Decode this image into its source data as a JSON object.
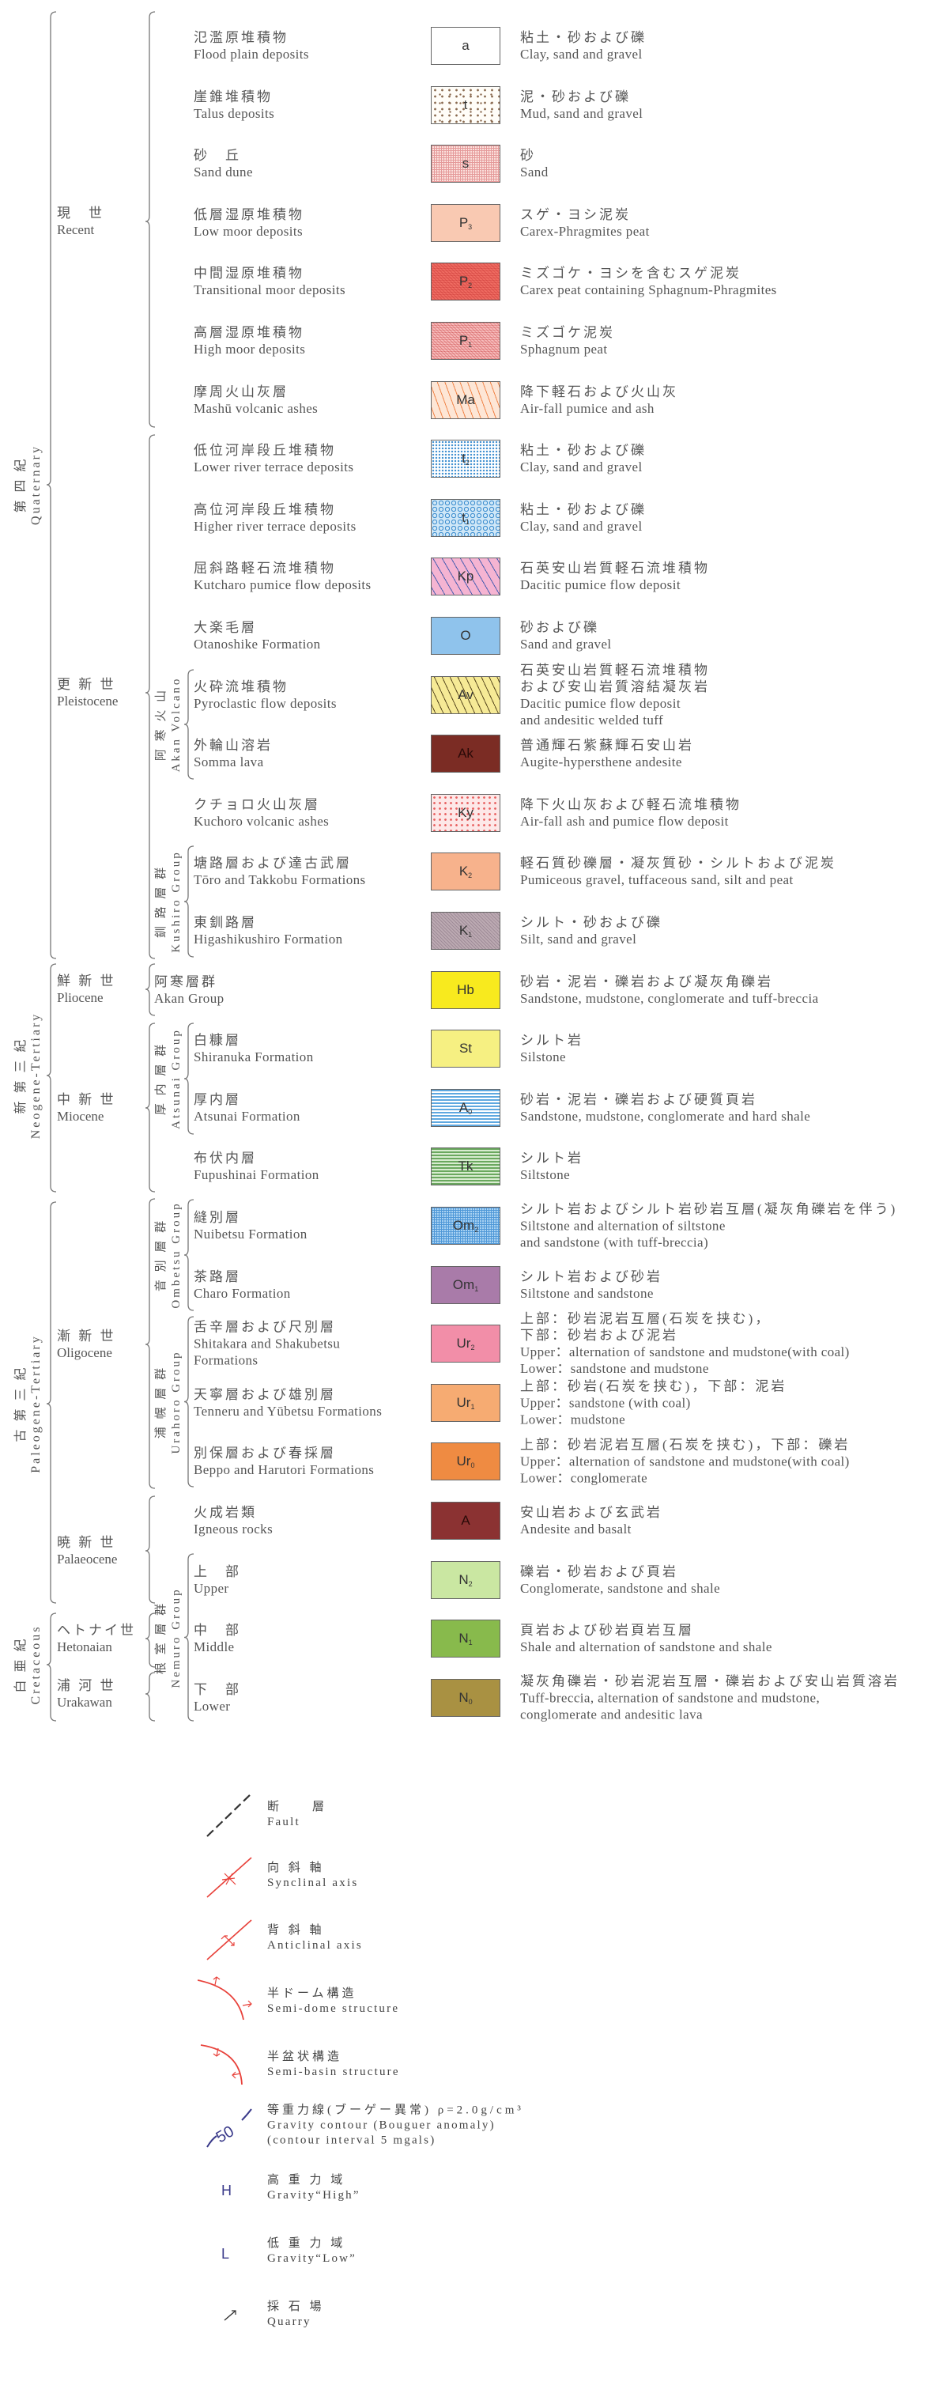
{
  "periods": [
    {
      "key": "quaternary",
      "jp": "第 四 紀",
      "en": "Quaternary"
    },
    {
      "key": "neogene",
      "jp": "新 第 三 紀",
      "en": "Neogene-Tertiary"
    },
    {
      "key": "paleogene",
      "jp": "古 第 三 紀",
      "en": "Paleogene-Tertiary"
    },
    {
      "key": "cretaceous",
      "jp": "白 亜 紀",
      "en": "Cretaceous"
    }
  ],
  "epochs": [
    {
      "key": "recent",
      "jp": "現　世",
      "en": "Recent"
    },
    {
      "key": "pleistocene",
      "jp": "更 新 世",
      "en": "Pleistocene"
    },
    {
      "key": "pliocene",
      "jp": "鮮 新 世",
      "en": "Pliocene"
    },
    {
      "key": "miocene",
      "jp": "中 新 世",
      "en": "Miocene"
    },
    {
      "key": "oligocene",
      "jp": "漸 新 世",
      "en": "Oligocene"
    },
    {
      "key": "palaeocene",
      "jp": "暁 新 世",
      "en": "Palaeocene"
    },
    {
      "key": "hetonaian",
      "jp": "ヘトナイ世",
      "en": "Hetonaian"
    },
    {
      "key": "urakawan",
      "jp": "浦 河 世",
      "en": "Urakawan"
    }
  ],
  "groups": [
    {
      "key": "akan_volcano",
      "jp": "阿 寒 火 山",
      "en": "Akan Volcano"
    },
    {
      "key": "kushiro",
      "jp": "釧 路 層 群",
      "en": "Kushiro Group"
    },
    {
      "key": "atsunai",
      "jp": "厚 内 層 群",
      "en": "Atsunai Group"
    },
    {
      "key": "ombetsu",
      "jp": "音 別 層 群",
      "en": "Ombetsu Group"
    },
    {
      "key": "urahoro",
      "jp": "浦 幌 層 群",
      "en": "Urahoro Group"
    },
    {
      "key": "nemuro",
      "jp": "根 室 層 群",
      "en": "Nemuro Group"
    }
  ],
  "units": [
    {
      "jp": "氾濫原堆積物",
      "en": [
        "Flood plain deposits"
      ],
      "code": "a",
      "sub": "",
      "color": "#ffffff",
      "pattern": "none",
      "desc_jp": [
        "粘土・砂および礫"
      ],
      "desc_en": [
        "Clay, sand and gravel"
      ]
    },
    {
      "jp": "崖錐堆積物",
      "en": [
        "Talus deposits"
      ],
      "code": "t",
      "sub": "",
      "color": "#fffdf8",
      "pattern": "brown-dots",
      "desc_jp": [
        "泥・砂および礫"
      ],
      "desc_en": [
        "Mud, sand and gravel"
      ]
    },
    {
      "jp": "砂　丘",
      "en": [
        "Sand dune"
      ],
      "code": "s",
      "sub": "",
      "color": "#fbe0dc",
      "pattern": "pink-grid",
      "desc_jp": [
        "砂"
      ],
      "desc_en": [
        "Sand"
      ]
    },
    {
      "jp": "低層湿原堆積物",
      "en": [
        "Low moor deposits"
      ],
      "code": "P",
      "sub": "3",
      "color": "#f9c9b2",
      "pattern": "none",
      "desc_jp": [
        "スゲ・ヨシ泥炭"
      ],
      "desc_en": [
        "Carex-Phragmites peat"
      ]
    },
    {
      "jp": "中間湿原堆積物",
      "en": [
        "Transitional moor deposits"
      ],
      "code": "P",
      "sub": "2",
      "color": "#ef6c62",
      "pattern": "red-hatch",
      "desc_jp": [
        "ミズゴケ・ヨシを含むスゲ泥炭"
      ],
      "desc_en": [
        "Carex peat containing Sphagnum-Phragmites"
      ]
    },
    {
      "jp": "高層湿原堆積物",
      "en": [
        "High moor deposits"
      ],
      "code": "P",
      "sub": "1",
      "color": "#f7bcbc",
      "pattern": "red-hatch",
      "desc_jp": [
        "ミズゴケ泥炭"
      ],
      "desc_en": [
        "Sphagnum peat"
      ]
    },
    {
      "jp": "摩周火山灰層",
      "en": [
        "Mashū volcanic ashes"
      ],
      "code": "Ma",
      "sub": "",
      "color": "#fde6d6",
      "pattern": "orange-dash",
      "desc_jp": [
        "降下軽石および火山灰"
      ],
      "desc_en": [
        "Air-fall pumice and ash"
      ]
    },
    {
      "jp": "低位河岸段丘堆積物",
      "en": [
        "Lower river terrace deposits"
      ],
      "code": "t",
      "sub": "2",
      "color": "#ffffff",
      "pattern": "blue-dots",
      "desc_jp": [
        "粘土・砂および礫"
      ],
      "desc_en": [
        "Clay, sand and gravel"
      ]
    },
    {
      "jp": "高位河岸段丘堆積物",
      "en": [
        "Higher river terrace deposits"
      ],
      "code": "t",
      "sub": "1",
      "color": "#cfe7f7",
      "pattern": "blue-circles",
      "desc_jp": [
        "粘土・砂および礫"
      ],
      "desc_en": [
        "Clay, sand and gravel"
      ]
    },
    {
      "jp": "屈斜路軽石流堆積物",
      "en": [
        "Kutcharo pumice flow deposits"
      ],
      "code": "Kp",
      "sub": "",
      "color": "#f5b4d2",
      "pattern": "blue-dash",
      "desc_jp": [
        "石英安山岩質軽石流堆積物"
      ],
      "desc_en": [
        "Dacitic pumice flow deposit"
      ]
    },
    {
      "jp": "大楽毛層",
      "en": [
        "Otanoshike Formation"
      ],
      "code": "O",
      "sub": "",
      "color": "#8fc3ec",
      "pattern": "none",
      "desc_jp": [
        "砂および礫"
      ],
      "desc_en": [
        "Sand and gravel"
      ]
    },
    {
      "jp": "火砕流堆積物",
      "en": [
        "Pyroclastic flow deposits"
      ],
      "code": "Av",
      "sub": "",
      "color": "#f6ea96",
      "pattern": "dark-dash",
      "desc_jp": [
        "石英安山岩質軽石流堆積物",
        "および安山岩質溶結凝灰岩"
      ],
      "desc_en": [
        "Dacitic pumice flow deposit",
        "and andesitic welded tuff"
      ]
    },
    {
      "jp": "外輪山溶岩",
      "en": [
        "Somma lava"
      ],
      "code": "Ak",
      "sub": "",
      "color": "#7b2c24",
      "pattern": "none",
      "desc_jp": [
        "普通輝石紫蘇輝石安山岩"
      ],
      "desc_en": [
        "Augite-hypersthene andesite"
      ]
    },
    {
      "jp": "クチョロ火山灰層",
      "en": [
        "Kuchoro volcanic ashes"
      ],
      "code": "Ky",
      "sub": "",
      "color": "#fde8e8",
      "pattern": "red-dots",
      "desc_jp": [
        "降下火山灰および軽石流堆積物"
      ],
      "desc_en": [
        "Air-fall ash and pumice flow deposit"
      ]
    },
    {
      "jp": "塘路層および達古武層",
      "en": [
        "Tōro and Takkobu Formations"
      ],
      "code": "K",
      "sub": "2",
      "color": "#f7b28c",
      "pattern": "none",
      "desc_jp": [
        "軽石質砂礫層・凝灰質砂・シルトおよび泥炭"
      ],
      "desc_en": [
        "Pumiceous gravel, tuffaceous sand, silt and peat"
      ]
    },
    {
      "jp": "東釧路層",
      "en": [
        "Higashikushiro Formation"
      ],
      "code": "K",
      "sub": "1",
      "color": "#bcaab2",
      "pattern": "grey-hatch",
      "desc_jp": [
        "シルト・砂および礫"
      ],
      "desc_en": [
        "Silt, sand and gravel"
      ]
    },
    {
      "jp": "阿寒層群",
      "en": [
        "Akan Group"
      ],
      "code": "Hb",
      "sub": "",
      "color": "#f8ea1e",
      "pattern": "none",
      "desc_jp": [
        "砂岩・泥岩・礫岩および凝灰角礫岩"
      ],
      "desc_en": [
        "Sandstone, mudstone, conglomerate and tuff-breccia"
      ]
    },
    {
      "jp": "白糠層",
      "en": [
        "Shiranuka Formation"
      ],
      "code": "St",
      "sub": "",
      "color": "#f6f082",
      "pattern": "none",
      "desc_jp": [
        "シルト岩"
      ],
      "desc_en": [
        "Silstone"
      ]
    },
    {
      "jp": "厚内層",
      "en": [
        "Atsunai Formation"
      ],
      "code": "A",
      "sub": "0",
      "color": "#ffffff",
      "pattern": "blue-lines",
      "desc_jp": [
        "砂岩・泥岩・礫岩および硬質頁岩"
      ],
      "desc_en": [
        "Sandstone, mudstone, conglomerate and hard shale"
      ]
    },
    {
      "jp": "布伏内層",
      "en": [
        "Fupushinai Formation"
      ],
      "code": "Tk",
      "sub": "",
      "color": "#ffffff",
      "pattern": "green-lines",
      "desc_jp": [
        "シルト岩"
      ],
      "desc_en": [
        "Siltstone"
      ]
    },
    {
      "jp": "縫別層",
      "en": [
        "Nuibetsu Formation"
      ],
      "code": "Om",
      "sub": "2",
      "color": "#a9d2f2",
      "pattern": "blue-grid",
      "desc_jp": [
        "シルト岩およびシルト岩砂岩互層(凝灰角礫岩を伴う)"
      ],
      "desc_en": [
        "Siltstone and alternation of siltstone",
        "and sandstone (with tuff-breccia)"
      ]
    },
    {
      "jp": "茶路層",
      "en": [
        "Charo Formation"
      ],
      "code": "Om",
      "sub": "1",
      "color": "#a97ba9",
      "pattern": "none",
      "desc_jp": [
        "シルト岩および砂岩"
      ],
      "desc_en": [
        "Siltstone and sandstone"
      ]
    },
    {
      "jp": "舌辛層および尺別層",
      "en": [
        "Shitakara and Shakubetsu",
        "Formations"
      ],
      "code": "Ur",
      "sub": "2",
      "color": "#f28ea8",
      "pattern": "none",
      "desc_jp": [
        "上部：砂岩泥岩互層(石炭を挟む)，",
        "下部：砂岩および泥岩"
      ],
      "desc_en": [
        "Upper：alternation of sandstone and mudstone(with coal)",
        "Lower：sandstone and mudstone"
      ]
    },
    {
      "jp": "天寧層および雄別層",
      "en": [
        "Tenneru and Yūbetsu Formations"
      ],
      "code": "Ur",
      "sub": "1",
      "color": "#f6ab72",
      "pattern": "none",
      "desc_jp": [
        "上部：砂岩(石炭を挟む)，下部：泥岩"
      ],
      "desc_en": [
        "Upper：sandstone (with coal)",
        "Lower：mudstone"
      ]
    },
    {
      "jp": "別保層および春採層",
      "en": [
        "Beppo and Harutori Formations"
      ],
      "code": "Ur",
      "sub": "0",
      "color": "#ef8b42",
      "pattern": "none",
      "desc_jp": [
        "上部：砂岩泥岩互層(石炭を挟む)，下部：礫岩"
      ],
      "desc_en": [
        "Upper：alternation of sandstone and mudstone(with coal)",
        "Lower：conglomerate"
      ]
    },
    {
      "jp": "火成岩類",
      "en": [
        "Igneous rocks"
      ],
      "code": "A",
      "sub": "",
      "color": "#8b3232",
      "pattern": "none",
      "desc_jp": [
        "安山岩および玄武岩"
      ],
      "desc_en": [
        "Andesite and basalt"
      ]
    },
    {
      "jp": "上　部",
      "en": [
        "Upper"
      ],
      "code": "N",
      "sub": "2",
      "color": "#cae7a2",
      "pattern": "none",
      "desc_jp": [
        "礫岩・砂岩および頁岩"
      ],
      "desc_en": [
        "Conglomerate, sandstone and shale"
      ]
    },
    {
      "jp": "中　部",
      "en": [
        "Middle"
      ],
      "code": "N",
      "sub": "1",
      "color": "#88ba4c",
      "pattern": "none",
      "desc_jp": [
        "頁岩および砂岩頁岩互層"
      ],
      "desc_en": [
        "Shale and alternation of sandstone and shale"
      ]
    },
    {
      "jp": "下　部",
      "en": [
        "Lower"
      ],
      "code": "N",
      "sub": "0",
      "color": "#a99142",
      "pattern": "none",
      "desc_jp": [
        "凝灰角礫岩・砂岩泥岩互層・礫岩および安山岩質溶岩"
      ],
      "desc_en": [
        "Tuff-breccia, alternation of sandstone and mudstone,",
        "conglomerate and andesitic lava"
      ]
    }
  ],
  "symbols": [
    {
      "icon": "fault-icon",
      "jp": "断　　層",
      "en": [
        "Fault"
      ]
    },
    {
      "icon": "synclinal-axis-icon",
      "jp": "向 斜 軸",
      "en": [
        "Synclinal axis"
      ]
    },
    {
      "icon": "anticlinal-axis-icon",
      "jp": "背 斜 軸",
      "en": [
        "Anticlinal axis"
      ]
    },
    {
      "icon": "semi-dome-icon",
      "jp": "半ドーム構造",
      "en": [
        "Semi-dome structure"
      ]
    },
    {
      "icon": "semi-basin-icon",
      "jp": "半盆状構造",
      "en": [
        "Semi-basin structure"
      ]
    },
    {
      "icon": "gravity-contour-icon",
      "jp": "等重力線(ブーゲー異常) ρ=2.0g/cm³",
      "en": [
        "Gravity contour (Bouguer anomaly)",
        "(contour interval 5 mgals)"
      ],
      "glyph": "50"
    },
    {
      "icon": "gravity-high-icon",
      "jp": "高 重 力 域",
      "en": [
        "Gravity“High”"
      ],
      "glyph": "H"
    },
    {
      "icon": "gravity-low-icon",
      "jp": "低 重 力 域",
      "en": [
        "Gravity“Low”"
      ],
      "glyph": "L"
    },
    {
      "icon": "quarry-icon",
      "jp": "採 石 場",
      "en": [
        "Quarry"
      ]
    }
  ],
  "colors": {
    "text": "#555555",
    "bracket": "#777777",
    "structure": "#e8413a",
    "gravity": "#3a3a8a",
    "fault": "#333333"
  }
}
